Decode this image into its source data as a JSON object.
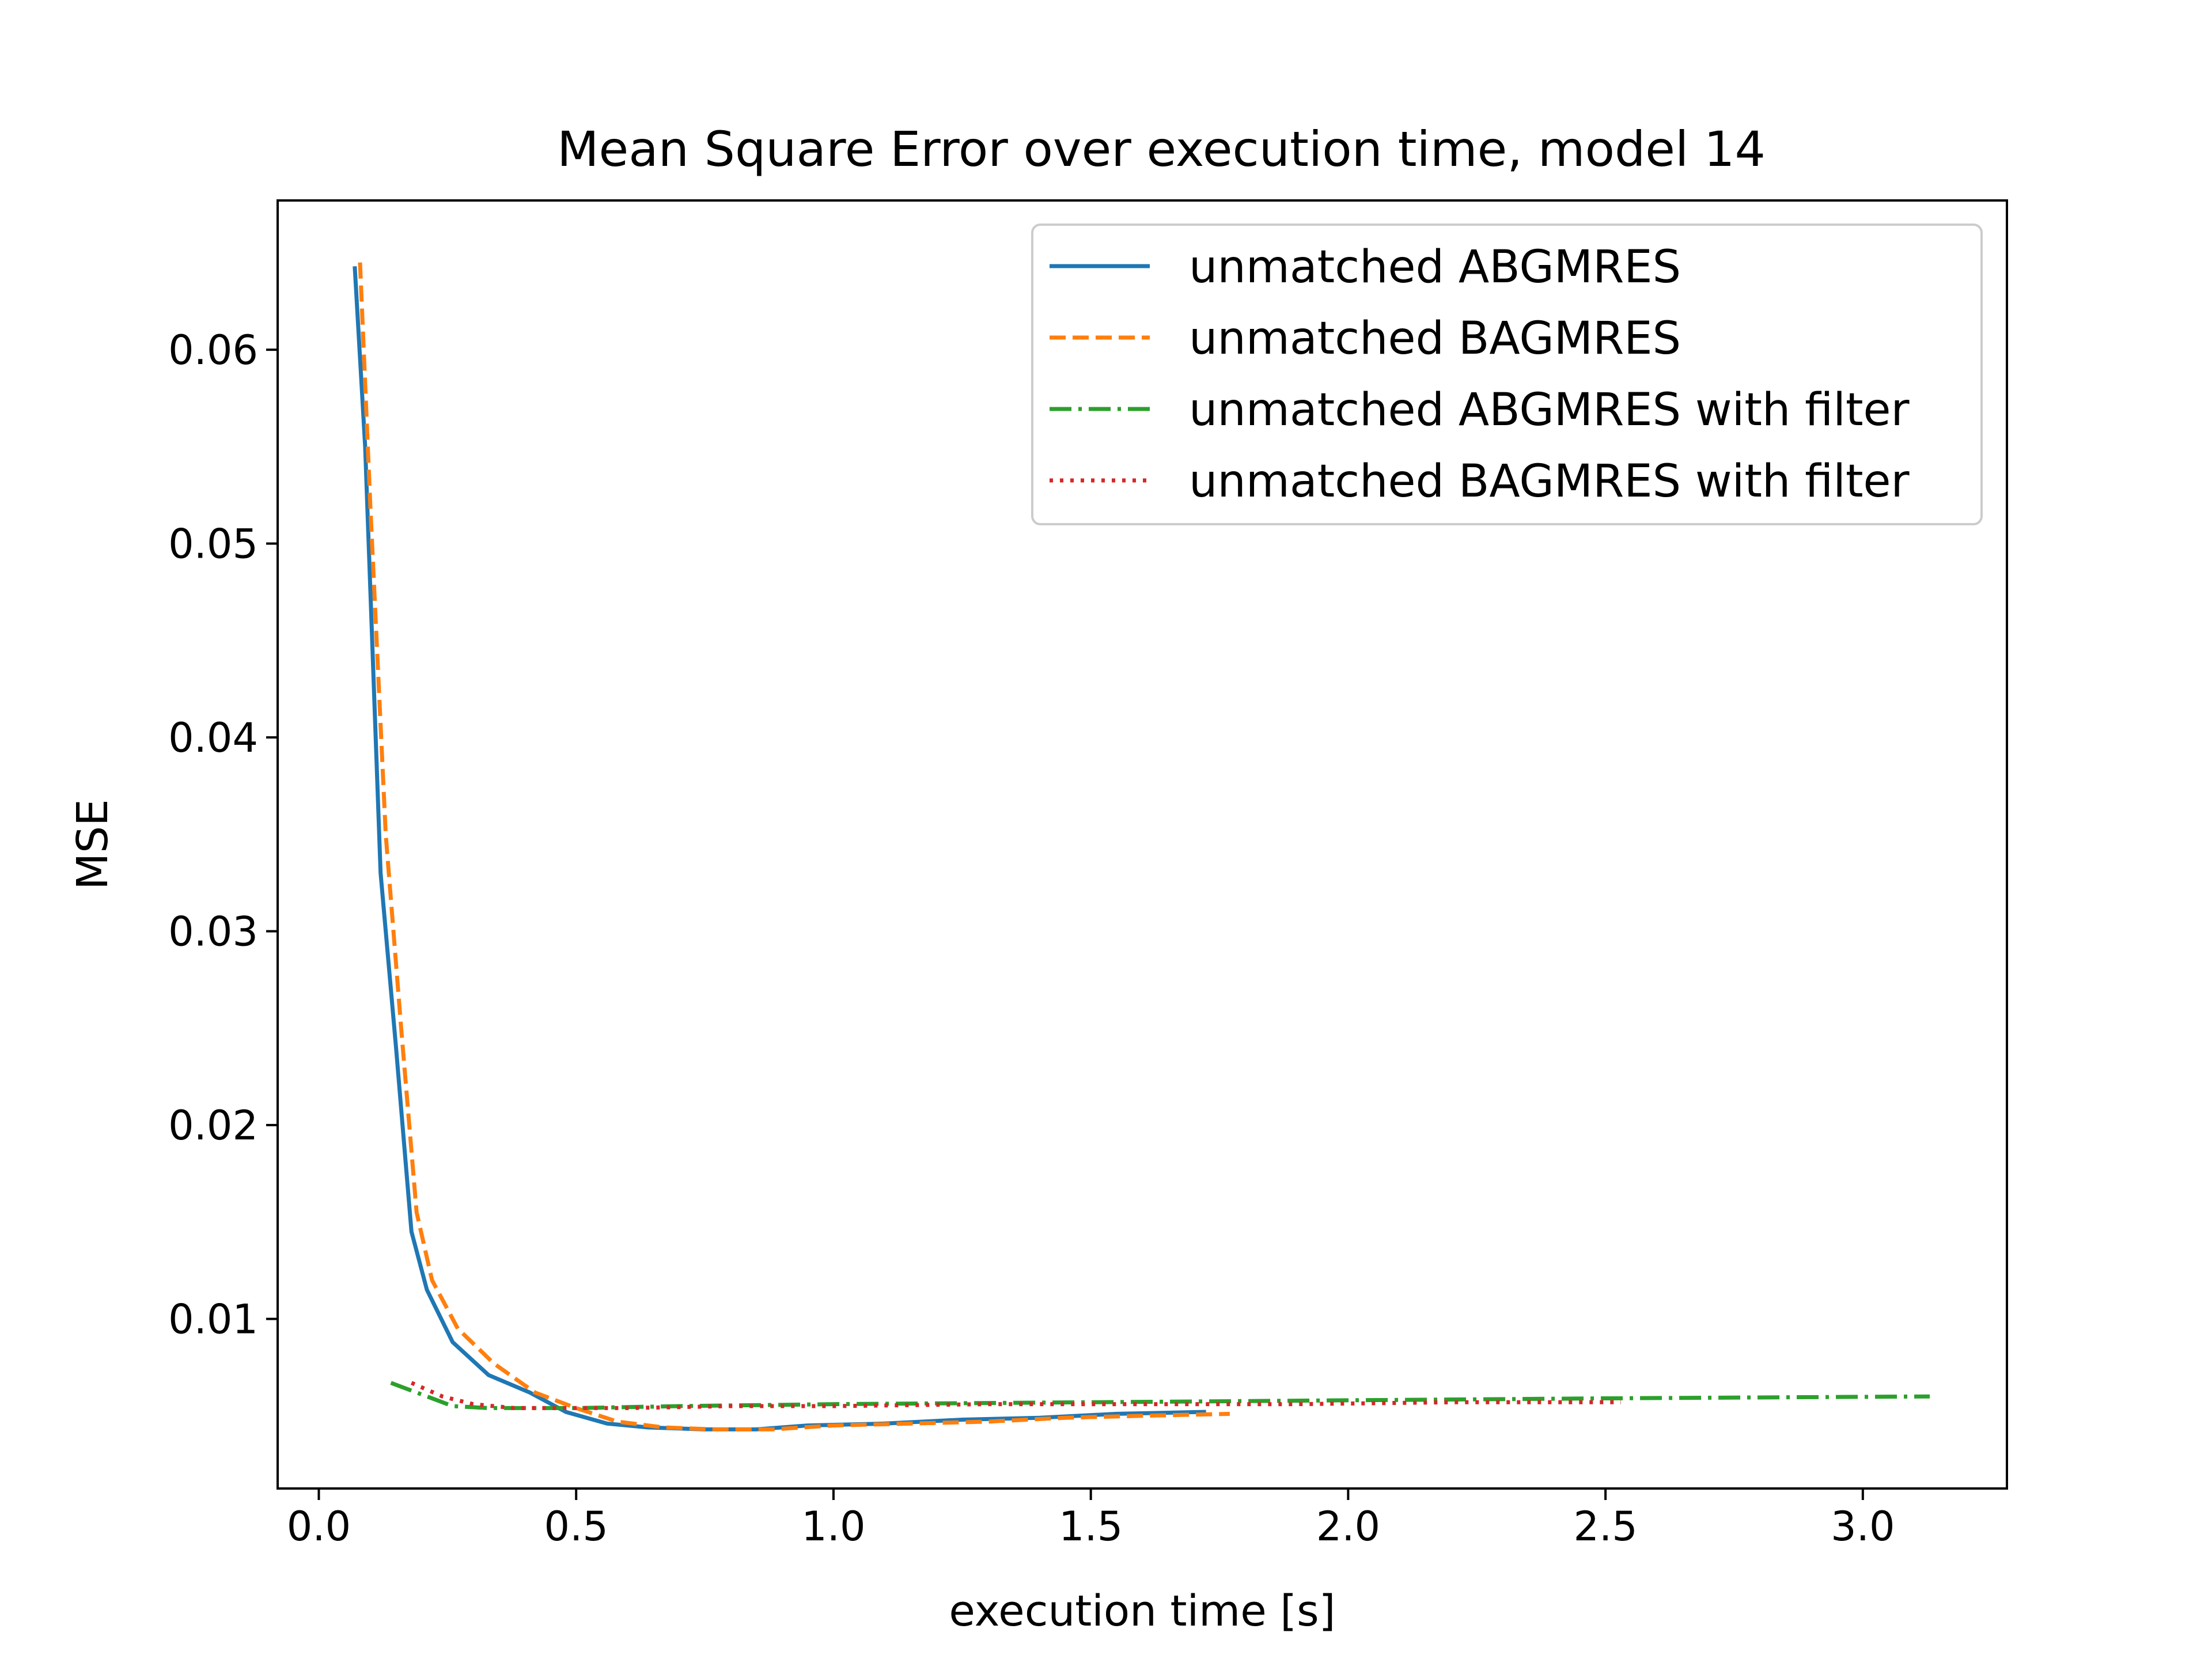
{
  "chart_data": {
    "type": "line",
    "title": "Mean Square Error over execution time, model 14",
    "xlabel": "execution time [s]",
    "ylabel": "MSE",
    "xlim": [
      -0.08,
      3.28
    ],
    "ylim": [
      0.00125,
      0.0677
    ],
    "xticks": [
      0.0,
      0.5,
      1.0,
      1.5,
      2.0,
      2.5,
      3.0
    ],
    "xtick_labels": [
      "0.0",
      "0.5",
      "1.0",
      "1.5",
      "2.0",
      "2.5",
      "3.0"
    ],
    "yticks": [
      0.01,
      0.02,
      0.03,
      0.04,
      0.05,
      0.06
    ],
    "ytick_labels": [
      "0.01",
      "0.02",
      "0.03",
      "0.04",
      "0.05",
      "0.06"
    ],
    "grid": false,
    "legend_position": "top-right",
    "series": [
      {
        "name": "unmatched ABGMRES",
        "color": "#1f77b4",
        "dash": "solid",
        "x": [
          0.07,
          0.09,
          0.12,
          0.15,
          0.18,
          0.21,
          0.26,
          0.33,
          0.41,
          0.48,
          0.56,
          0.64,
          0.75,
          0.85,
          0.95,
          1.1,
          1.25,
          1.4,
          1.55,
          1.72
        ],
        "y": [
          0.0642,
          0.055,
          0.033,
          0.024,
          0.0145,
          0.0115,
          0.0088,
          0.0071,
          0.0062,
          0.0052,
          0.0046,
          0.0044,
          0.0043,
          0.0043,
          0.0045,
          0.0046,
          0.0048,
          0.0049,
          0.0051,
          0.0052
        ]
      },
      {
        "name": "unmatched BAGMRES",
        "color": "#ff7f0e",
        "dash": "dashed",
        "x": [
          0.08,
          0.1,
          0.13,
          0.16,
          0.19,
          0.22,
          0.27,
          0.34,
          0.42,
          0.5,
          0.58,
          0.67,
          0.77,
          0.88,
          1.0,
          1.15,
          1.3,
          1.45,
          1.6,
          1.77
        ],
        "y": [
          0.0645,
          0.052,
          0.035,
          0.025,
          0.0155,
          0.012,
          0.0095,
          0.0077,
          0.0062,
          0.0054,
          0.0047,
          0.0044,
          0.0043,
          0.0043,
          0.0045,
          0.0046,
          0.0047,
          0.0049,
          0.005,
          0.0051
        ]
      },
      {
        "name": "unmatched ABGMRES with filter",
        "color": "#2ca02c",
        "dash": "dashdot",
        "x": [
          0.14,
          0.2,
          0.26,
          0.33,
          0.4,
          0.5,
          0.7,
          1.0,
          1.5,
          2.0,
          2.5,
          3.13
        ],
        "y": [
          0.0067,
          0.0061,
          0.0055,
          0.0054,
          0.0054,
          0.0054,
          0.0055,
          0.0056,
          0.0057,
          0.0058,
          0.0059,
          0.006
        ]
      },
      {
        "name": "unmatched BAGMRES with filter",
        "color": "#d62728",
        "dash": "dotted",
        "x": [
          0.18,
          0.24,
          0.3,
          0.38,
          0.48,
          0.6,
          0.8,
          1.0,
          1.3,
          1.6,
          1.9,
          2.2,
          2.53
        ],
        "y": [
          0.0067,
          0.006,
          0.0056,
          0.0054,
          0.0054,
          0.0054,
          0.0055,
          0.0055,
          0.0056,
          0.0056,
          0.0056,
          0.0057,
          0.0057
        ]
      }
    ]
  }
}
